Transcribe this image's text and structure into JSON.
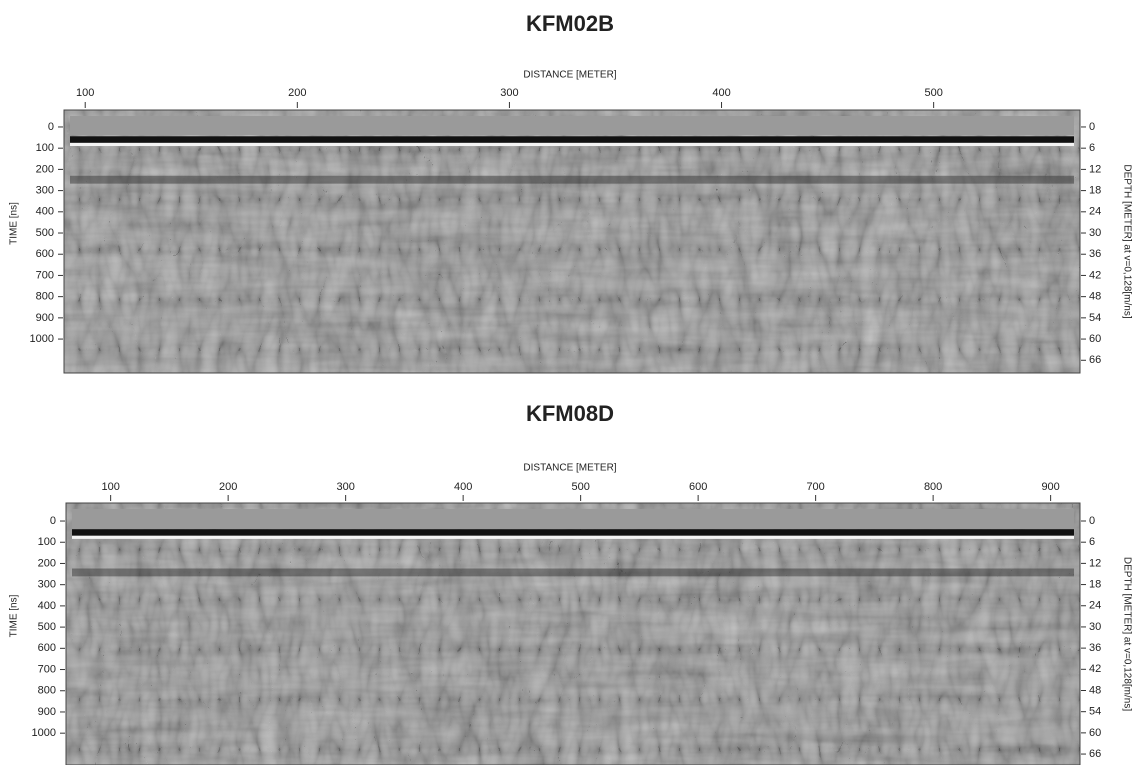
{
  "chart_data": [
    {
      "type": "image",
      "title": "KFM02B",
      "x_label": "DISTANCE [METER]",
      "y_label": "TIME [ns]",
      "y2_label": "DEPTH [METER] at v=0,128[m/ns]",
      "xlim": [
        90,
        569
      ],
      "xticks": [
        100,
        200,
        300,
        400,
        500
      ],
      "ylim": [
        -80,
        1160
      ],
      "yticks": [
        0,
        100,
        200,
        300,
        400,
        500,
        600,
        700,
        800,
        900,
        1000
      ],
      "y_inverted": true,
      "y2lim": [
        -4.8,
        69.6
      ],
      "y2ticks": [
        0,
        6,
        12,
        18,
        24,
        30,
        36,
        42,
        48,
        54,
        60,
        66
      ]
    },
    {
      "type": "image",
      "title": "KFM08D",
      "x_label": "DISTANCE [METER]",
      "y_label": "TIME [ns]",
      "y2_label": "DEPTH [METER] at v=0,128[m/ns]",
      "xlim": [
        62,
        925
      ],
      "xticks": [
        100,
        200,
        300,
        400,
        500,
        600,
        700,
        800,
        900
      ],
      "ylim": [
        -85,
        1150
      ],
      "yticks": [
        0,
        100,
        200,
        300,
        400,
        500,
        600,
        700,
        800,
        900,
        1000
      ],
      "y_inverted": true,
      "y2lim": [
        -5.1,
        69.1
      ],
      "y2ticks": [
        0,
        6,
        12,
        18,
        24,
        30,
        36,
        42,
        48,
        54,
        60,
        66
      ]
    }
  ]
}
